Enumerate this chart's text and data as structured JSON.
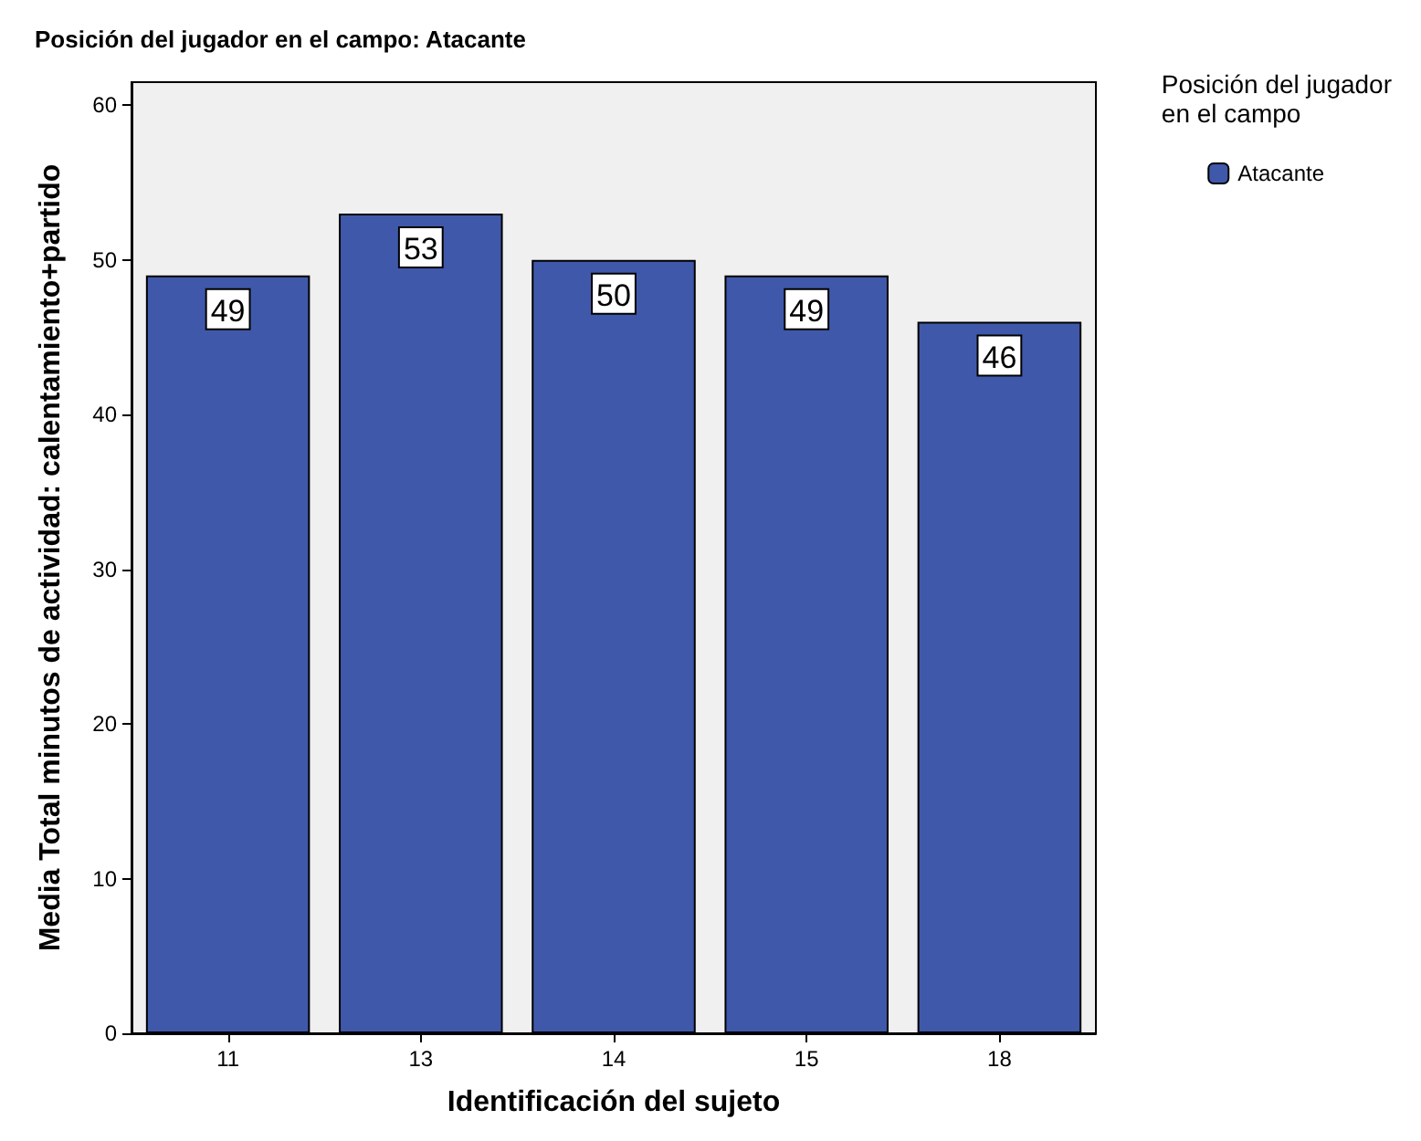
{
  "chart_data": {
    "type": "bar",
    "title": "Posición del jugador en el campo: Atacante",
    "xlabel": "Identificación del sujeto",
    "ylabel": "Media Total minutos de actividad: calentamiento+partido",
    "legend_title": "Posición del jugador en el campo",
    "categories": [
      "11",
      "13",
      "14",
      "15",
      "18"
    ],
    "series": [
      {
        "name": "Atacante",
        "color": "#3f58aa",
        "values": [
          49,
          53,
          50,
          49,
          46
        ]
      }
    ],
    "ylim": [
      0,
      61.5
    ],
    "yticks": [
      0,
      10,
      20,
      30,
      40,
      50,
      60
    ],
    "data_labels": true,
    "grid": false,
    "legend": "top right"
  }
}
